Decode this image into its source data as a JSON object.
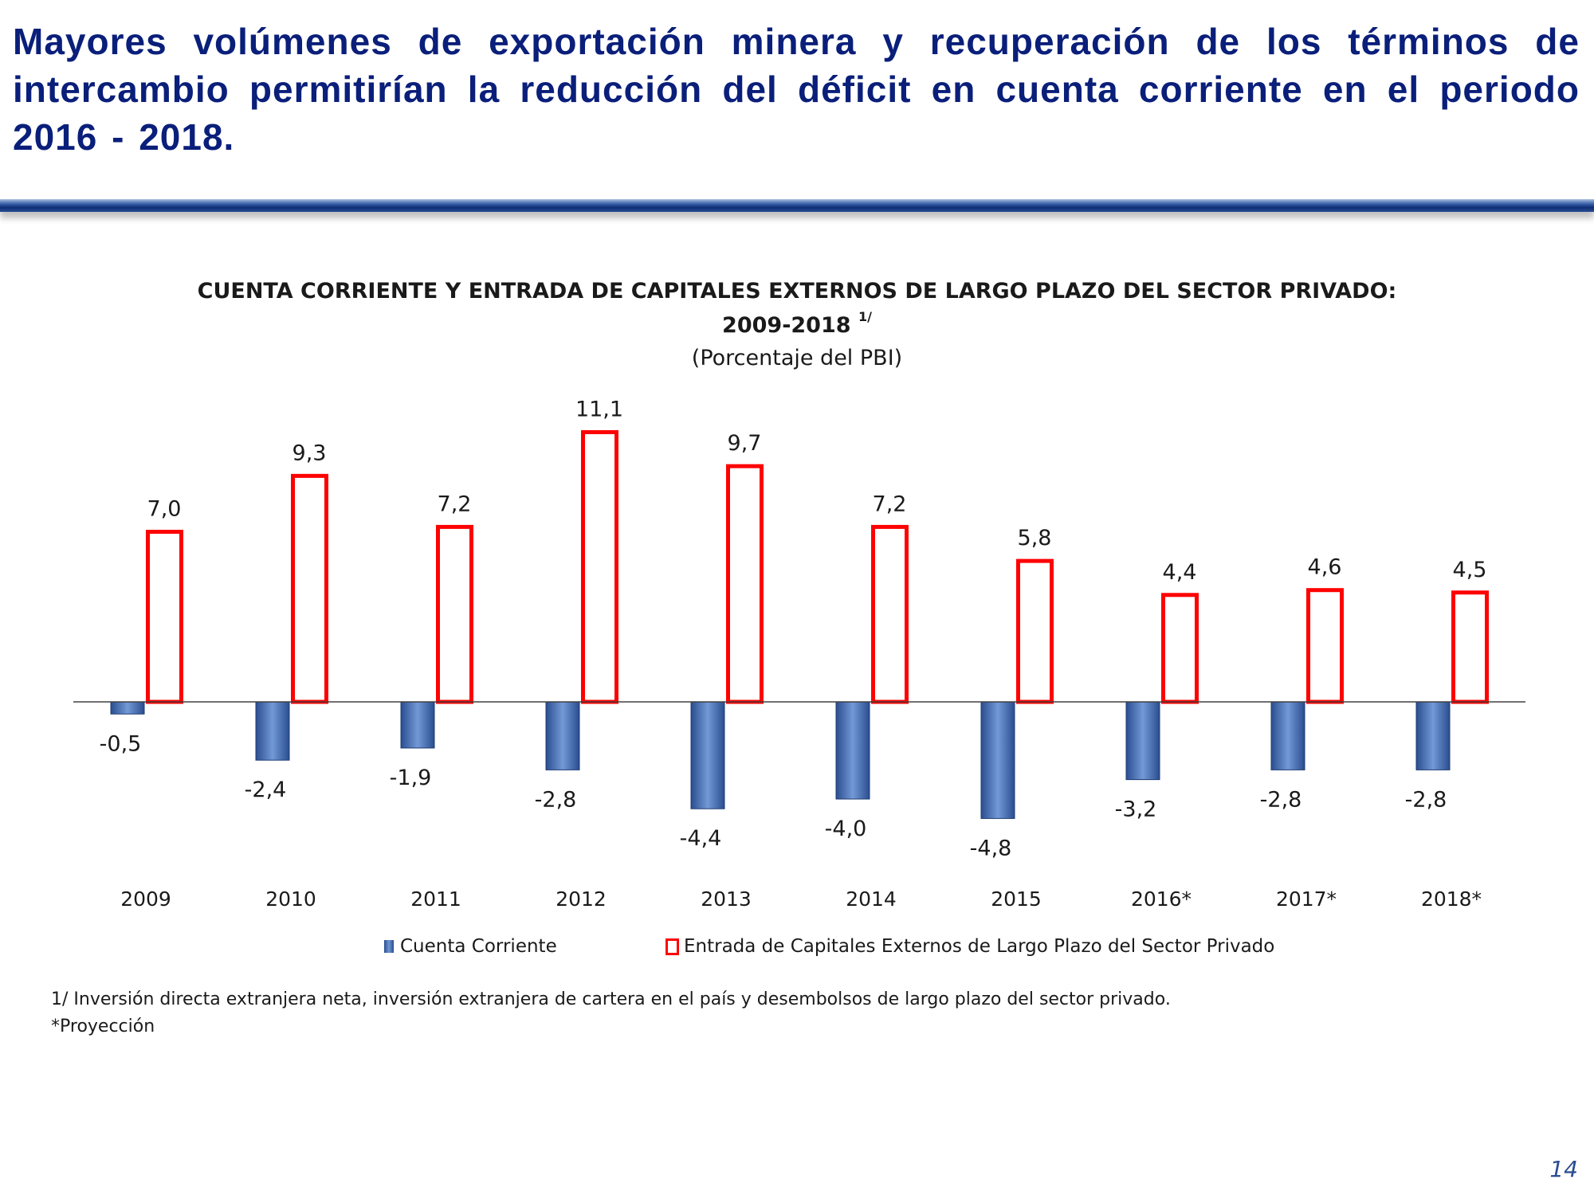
{
  "slide": {
    "headline": "Mayores volúmenes de exportación minera y recuperación de los términos de intercambio permitirían la reducción del déficit en cuenta corriente en el periodo 2016 - 2018.",
    "footnote_1": "1/ Inversión directa extranjera neta, inversión extranjera de cartera en el país  y desembolsos de largo plazo del sector privado.",
    "footnote_2": "*Proyección",
    "page_number": "14",
    "colors": {
      "headline": "#0a1f7a",
      "divider": "#2a4d92"
    }
  },
  "chart_data": {
    "type": "bar",
    "title": "CUENTA CORRIENTE Y ENTRADA DE CAPITALES EXTERNOS DE LARGO PLAZO DEL SECTOR PRIVADO:",
    "title_line2": "2009-2018",
    "title_sup": "1/",
    "subtitle": "(Porcentaje del PBI)",
    "categories": [
      "2009",
      "2010",
      "2011",
      "2012",
      "2013",
      "2014",
      "2015",
      "2016*",
      "2017*",
      "2018*"
    ],
    "series": [
      {
        "name": "Cuenta Corriente",
        "values": [
          -0.5,
          -2.4,
          -1.9,
          -2.8,
          -4.4,
          -4.0,
          -4.8,
          -3.2,
          -2.8,
          -2.8
        ],
        "labels": [
          "-0,5",
          "-2,4",
          "-1,9",
          "-2,8",
          "-4,4",
          "-4,0",
          "-4,8",
          "-3,2",
          "-2,8",
          "-2,8"
        ],
        "color": "#4a72b8"
      },
      {
        "name": "Entrada de Capitales Externos de Largo Plazo del Sector Privado",
        "values": [
          7.0,
          9.3,
          7.2,
          11.1,
          9.7,
          7.2,
          5.8,
          4.4,
          4.6,
          4.5
        ],
        "labels": [
          "7,0",
          "9,3",
          "7,2",
          "11,1",
          "9,7",
          "7,2",
          "5,8",
          "4,4",
          "4,6",
          "4,5"
        ],
        "color": "#ff0000"
      }
    ],
    "xlabel": "",
    "ylabel": "",
    "ylim": [
      -5,
      11.5
    ],
    "grid": false,
    "legend": "bottom"
  }
}
